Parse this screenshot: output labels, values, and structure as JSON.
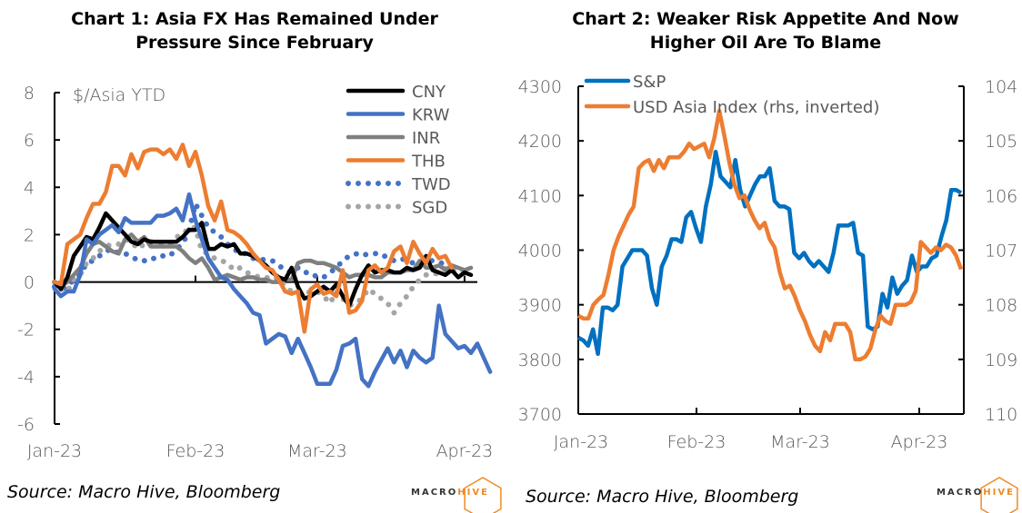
{
  "chart_data": [
    {
      "type": "line",
      "title": "Chart 1: Asia FX Has Remained Under Pressure Since February",
      "annotation": "$/Asia YTD",
      "xlabel": "",
      "ylabel": "",
      "ylim": [
        -6,
        8
      ],
      "yticks": [
        8,
        6,
        4,
        2,
        0,
        -2,
        -4,
        -6
      ],
      "x_tick_labels": [
        "Jan-23",
        "Feb-23",
        "Mar-23",
        "Apr-23"
      ],
      "x_tick_positions": [
        0,
        22,
        41,
        64
      ],
      "x_range": [
        0,
        66
      ],
      "grid": false,
      "legend_position": "top-right",
      "series": [
        {
          "name": "CNY",
          "color": "#000000",
          "style": "solid",
          "values": [
            0,
            -0.3,
            0.2,
            1.1,
            1.5,
            1.9,
            1.8,
            2.3,
            2.9,
            2.6,
            2.3,
            2.0,
            1.7,
            1.6,
            1.8,
            1.7,
            1.7,
            1.7,
            1.7,
            1.7,
            1.9,
            2.2,
            2.2,
            2.5,
            1.4,
            1.4,
            1.6,
            1.5,
            1.6,
            1.2,
            1.2,
            1.1,
            0.9,
            0.7,
            0.4,
            0.2,
            0.1,
            0.6,
            -0.2,
            -0.7,
            -0.6,
            -0.4,
            -0.2,
            -0.4,
            -0.1,
            -0.6,
            -1.0,
            -0.3,
            0.3,
            0.7,
            0.4,
            0.5,
            0.5,
            0.4,
            0.4,
            0.6,
            0.5,
            0.6,
            1.1,
            0.5,
            0.4,
            0.3,
            0.5,
            0.2,
            0.4,
            0.3
          ]
        },
        {
          "name": "KRW",
          "color": "#4472c4",
          "style": "solid",
          "values": [
            -0.3,
            -0.6,
            -0.4,
            -0.4,
            0.3,
            1.8,
            1.6,
            2.0,
            2.2,
            2.4,
            2.1,
            2.7,
            2.5,
            2.5,
            2.5,
            2.5,
            2.8,
            2.8,
            2.9,
            3.1,
            2.6,
            3.7,
            2.6,
            1.8,
            1.0,
            0.6,
            0.2,
            0.1,
            -0.3,
            -0.6,
            -0.9,
            -1.3,
            -1.4,
            -2.6,
            -2.4,
            -2.2,
            -2.3,
            -3.0,
            -2.4,
            -3.0,
            -3.6,
            -4.3,
            -4.3,
            -4.3,
            -3.7,
            -2.7,
            -2.6,
            -2.4,
            -4.1,
            -4.4,
            -3.8,
            -3.3,
            -2.8,
            -3.4,
            -2.9,
            -3.6,
            -2.9,
            -3.2,
            -3.4,
            -3.2,
            -1.0,
            -2.2,
            -2.5,
            -2.8,
            -2.7,
            -3.0,
            -2.6,
            -3.2,
            -3.8
          ]
        },
        {
          "name": "INR",
          "color": "#7f7f7f",
          "style": "solid",
          "values": [
            0,
            -0.2,
            0,
            0.3,
            0.6,
            1.2,
            1.6,
            1.7,
            1.5,
            1.3,
            1.2,
            1.8,
            2.0,
            1.7,
            1.9,
            1.5,
            1.5,
            1.5,
            1.5,
            1.5,
            1.3,
            1.0,
            0.8,
            1.0,
            0.6,
            0.1,
            0.2,
            0.3,
            0.2,
            0.1,
            0.2,
            0.2,
            0.1,
            0.1,
            0.0,
            0.0,
            0.1,
            0.1,
            0.8,
            0.9,
            0.9,
            0.8,
            0.8,
            0.7,
            0.6,
            0.4,
            0.2,
            0.3,
            0.3,
            0.3,
            0.2,
            0.2,
            0.4,
            0.4,
            0.4,
            0.5,
            0.5,
            0.9,
            0.6,
            0.6,
            0.7,
            0.5,
            0.7,
            0.6,
            0.5,
            0.6
          ]
        },
        {
          "name": "THB",
          "color": "#ed7d31",
          "style": "solid",
          "values": [
            0,
            -0.1,
            1.6,
            1.8,
            2.0,
            2.7,
            3.3,
            3.3,
            3.8,
            4.9,
            4.9,
            4.5,
            5.4,
            4.8,
            5.5,
            5.6,
            5.6,
            5.4,
            5.6,
            5.2,
            5.8,
            4.9,
            5.5,
            4.5,
            3.2,
            2.6,
            3.4,
            2.2,
            2.1,
            1.9,
            1.6,
            1.2,
            0.9,
            0.6,
            0.5,
            0.1,
            -0.4,
            -0.5,
            -0.4,
            -2.1,
            -0.3,
            -0.1,
            -0.5,
            -0.4,
            -0.6,
            0.5,
            -1.3,
            -1.2,
            -0.8,
            0.5,
            0.7,
            0.4,
            0.6,
            1.3,
            1.5,
            0.8,
            1.7,
            1.2,
            0.8,
            1.4,
            1.0,
            1.1,
            0.6
          ]
        },
        {
          "name": "TWD",
          "color": "#4472c4",
          "style": "dotted",
          "values": [
            -0.2,
            -0.3,
            -0.2,
            0.1,
            0.3,
            0.8,
            0.9,
            1.1,
            1.3,
            1.4,
            1.2,
            1.2,
            1.1,
            0.9,
            0.9,
            0.9,
            1.1,
            1.1,
            1.1,
            1.4,
            1.6,
            2.2,
            3.3,
            2.8,
            2.3,
            2.1,
            1.9,
            1.6,
            1.4,
            1.2,
            1.2,
            1.0,
            1.0,
            0.9,
            0.9,
            0.7,
            0.5,
            0.4,
            0.6,
            0.4,
            0.4,
            0.2,
            0.2,
            0.4,
            0.6,
            0.9,
            1.1,
            1.2,
            1.1,
            1.2,
            1.2,
            1.2,
            1.0,
            0.9,
            1.0,
            0.9,
            0.8,
            0.8,
            0.9,
            0.9,
            0.8,
            0.8
          ]
        },
        {
          "name": "SGD",
          "color": "#a5a5a5",
          "style": "dotted",
          "values": [
            0,
            -0.3,
            -0.4,
            0.1,
            0.3,
            0.8,
            1.0,
            1.3,
            1.5,
            1.6,
            1.6,
            1.8,
            1.7,
            1.4,
            1.6,
            1.7,
            1.7,
            1.6,
            1.6,
            1.9,
            2.0,
            2.3,
            2.3,
            1.3,
            1.2,
            1.0,
            0.9,
            0.8,
            0.5,
            0.6,
            0.4,
            0.3,
            0.2,
            0.2,
            0.1,
            0.2,
            -0.2,
            -0.4,
            -0.5,
            -0.5,
            -0.4,
            -0.4,
            -0.6,
            -0.9,
            -0.4,
            -0.7,
            -1.0,
            -0.9,
            -0.7,
            -0.3,
            -0.5,
            -0.7,
            -0.9,
            -1.3,
            -0.9,
            -0.6,
            -0.2,
            0.1,
            0.3,
            0.3,
            0.4,
            0.6,
            0.5,
            0.4,
            0.5,
            0.4
          ]
        }
      ],
      "legend": [
        "CNY",
        "KRW",
        "INR",
        "THB",
        "TWD",
        "SGD"
      ]
    },
    {
      "type": "line",
      "title": "Chart 2: Weaker Risk Appetite And Now Higher Oil Are To Blame",
      "xlabel": "",
      "ylabel": "",
      "ylim": [
        3700,
        4300
      ],
      "y2lim": [
        110,
        104
      ],
      "y2_inverted": true,
      "yticks": [
        4300,
        4200,
        4100,
        4000,
        3900,
        3800,
        3700
      ],
      "y2ticks": [
        104,
        105,
        106,
        107,
        108,
        109,
        110
      ],
      "x_tick_labels": [
        "Jan-23",
        "Feb-23",
        "Mar-23",
        "Apr-23"
      ],
      "x_tick_positions": [
        0,
        22,
        41,
        64
      ],
      "x_range": [
        0,
        72
      ],
      "grid": false,
      "legend_position": "top-left",
      "series": [
        {
          "name": "S&P",
          "color": "#0070c0",
          "axis": "left",
          "values": [
            3840,
            3835,
            3825,
            3855,
            3810,
            3895,
            3895,
            3890,
            3900,
            3970,
            3985,
            4000,
            4000,
            4000,
            3990,
            3930,
            3900,
            3970,
            3990,
            4020,
            4020,
            4015,
            4060,
            4070,
            4040,
            4015,
            4080,
            4120,
            4180,
            4135,
            4125,
            4115,
            4165,
            4110,
            4080,
            4100,
            4120,
            4135,
            4135,
            4150,
            4090,
            4080,
            4080,
            4075,
            3995,
            3985,
            3995,
            3980,
            3970,
            3980,
            3970,
            3960,
            3995,
            4045,
            4045,
            4045,
            4050,
            3995,
            3990,
            3860,
            3855,
            3860,
            3920,
            3895,
            3950,
            3920,
            3935,
            3945,
            3990,
            3960,
            3970,
            3970,
            3985,
            3990,
            4025,
            4055,
            4110,
            4110,
            4105
          ]
        },
        {
          "name": "USD Asia Index (rhs, inverted)",
          "color": "#ed7d31",
          "axis": "right",
          "values": [
            108.2,
            108.25,
            108.25,
            108.0,
            107.9,
            107.82,
            107.45,
            107.0,
            106.75,
            106.55,
            106.35,
            106.2,
            105.5,
            105.4,
            105.35,
            105.55,
            105.35,
            105.5,
            105.3,
            105.3,
            105.3,
            105.2,
            105.05,
            105.15,
            105.1,
            105.05,
            105.3,
            104.95,
            104.45,
            104.9,
            105.4,
            105.8,
            106.05,
            106.0,
            106.25,
            106.45,
            106.6,
            106.5,
            106.8,
            106.95,
            107.4,
            107.7,
            107.65,
            107.85,
            108.1,
            108.3,
            108.55,
            108.75,
            108.85,
            108.5,
            108.65,
            108.35,
            108.35,
            108.35,
            108.5,
            109.0,
            109.0,
            108.95,
            108.8,
            108.45,
            108.2,
            108.3,
            108.35,
            108.0,
            108.0,
            108.0,
            107.95,
            107.75,
            106.85,
            106.95,
            107.05,
            106.95,
            107.0,
            106.9,
            106.95,
            107.1,
            107.35
          ]
        }
      ],
      "legend": [
        "S&P",
        "USD Asia Index (rhs, inverted)"
      ]
    }
  ],
  "titles": {
    "chart1_line1": "Chart 1: Asia FX Has Remained Under",
    "chart1_line2": "Pressure Since February",
    "chart2_line1": "Chart 2: Weaker Risk Appetite And Now",
    "chart2_line2": "Higher Oil Are To Blame"
  },
  "annotation": "$/Asia YTD",
  "source": "Source: Macro Hive, Bloomberg",
  "logo": {
    "macro": "MACRO",
    "hive": "HIVE",
    "accent_color": "#f08a24"
  }
}
